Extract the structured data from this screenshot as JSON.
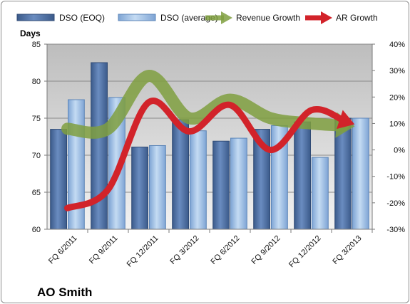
{
  "chart_data": {
    "type": "bar",
    "title": "",
    "company_label": "AO Smith",
    "categories": [
      "FQ 6/2011",
      "FQ 9/2011",
      "FQ 12/2011",
      "FQ 3/2012",
      "FQ 6/2012",
      "FQ 9/2012",
      "FQ 12/2012",
      "FQ 3/2013"
    ],
    "ylabel": "Days",
    "ylim": [
      60,
      85
    ],
    "y_ticks": [
      "60",
      "65",
      "70",
      "75",
      "80",
      "85"
    ],
    "y2lim": [
      -30,
      40
    ],
    "y2_ticks": [
      "-30%",
      "-20%",
      "-10%",
      "0%",
      "10%",
      "20%",
      "30%",
      "40%"
    ],
    "grid": true,
    "legend_position": "top",
    "series": [
      {
        "name": "DSO (EOQ)",
        "type": "bar",
        "axis": "left",
        "color": "#4f6fa0",
        "values": [
          73.5,
          82.5,
          71.1,
          74.8,
          71.9,
          73.5,
          74.5,
          75.0
        ]
      },
      {
        "name": "DSO (average)",
        "type": "bar",
        "axis": "left",
        "color": "#9dbde2",
        "values": [
          77.5,
          77.8,
          71.3,
          73.3,
          72.3,
          74.0,
          69.7,
          75.0
        ]
      },
      {
        "name": "Revenue Growth",
        "type": "line",
        "axis": "right",
        "color": "#7f9f3f",
        "values": [
          8,
          8,
          28,
          12,
          19,
          12,
          10,
          9
        ]
      },
      {
        "name": "AR Growth",
        "type": "line",
        "axis": "right",
        "color": "#d2232a",
        "values": [
          -22,
          -15,
          18,
          7,
          17,
          0,
          15,
          10
        ]
      }
    ]
  }
}
